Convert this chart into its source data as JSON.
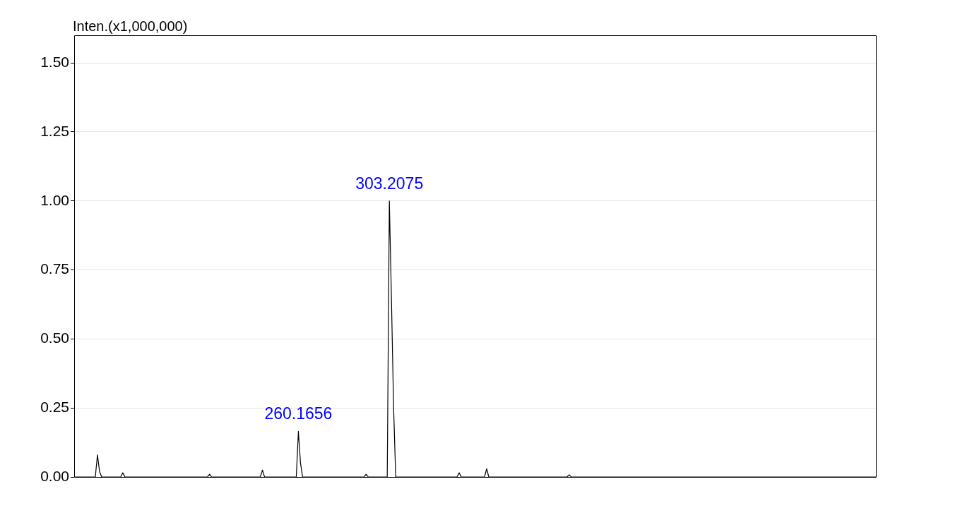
{
  "chart_data": {
    "type": "line",
    "ylabel": "Inten.(x1,000,000)",
    "categories": [
      null,
      null,
      null,
      null,
      null,
      null,
      null,
      null,
      null,
      null,
      null,
      null,
      null,
      null,
      null,
      null,
      null,
      null,
      null,
      null,
      null,
      null,
      null,
      null,
      null,
      null,
      null,
      null,
      null,
      null,
      null,
      null,
      null,
      null,
      null,
      null,
      null,
      null,
      null,
      null,
      null,
      null,
      null,
      null,
      null,
      null,
      null,
      null,
      null,
      null,
      null,
      null,
      null,
      null,
      null,
      null,
      null,
      null,
      null,
      null,
      null,
      null,
      null,
      null,
      null,
      null,
      null,
      null,
      null,
      null,
      null,
      null,
      null,
      null,
      null,
      null,
      null,
      null,
      null,
      null,
      null,
      null,
      null,
      null,
      null,
      null,
      null,
      null,
      null,
      null,
      null,
      null,
      null,
      null,
      null,
      null,
      null,
      null,
      null,
      null,
      null,
      null,
      null,
      null,
      null,
      null,
      null,
      null,
      null,
      null,
      null,
      null,
      null,
      null,
      null,
      null,
      null,
      null,
      null,
      null,
      null,
      null,
      null,
      null,
      null,
      null,
      null,
      null,
      null,
      null,
      null,
      null,
      null,
      null,
      null,
      null,
      null,
      null,
      null,
      null,
      null,
      null,
      null,
      null,
      null,
      null,
      null,
      null,
      null,
      null,
      null,
      null,
      null,
      null,
      null,
      null,
      null,
      null,
      null,
      null,
      null,
      null,
      null,
      null,
      null,
      null,
      null,
      null,
      null,
      null,
      null,
      null,
      null,
      null,
      null,
      null,
      null,
      null,
      null,
      null,
      null,
      null,
      null,
      null,
      null,
      null,
      null,
      null,
      null,
      null,
      null,
      null,
      null,
      null,
      null,
      null,
      null,
      null,
      null,
      null,
      null,
      null,
      null,
      null,
      null,
      null,
      null,
      null,
      null,
      null,
      null,
      null,
      null,
      null,
      null,
      null,
      null,
      null,
      null,
      null,
      null,
      null,
      null,
      null,
      null,
      null,
      null,
      null,
      null,
      null,
      null,
      null,
      null,
      null,
      null,
      null,
      null,
      null,
      null,
      null,
      null,
      null,
      null,
      null,
      null,
      null,
      null,
      null,
      null,
      null,
      null,
      null,
      null,
      null,
      null,
      null,
      null,
      null,
      null,
      null,
      null,
      null,
      null,
      null,
      null,
      null,
      null,
      null,
      null,
      null,
      null,
      null,
      null,
      null,
      null,
      null,
      null,
      null,
      null,
      null,
      null,
      null,
      null,
      null,
      null,
      null,
      null,
      null,
      null,
      null,
      null,
      null,
      null,
      null,
      null,
      null,
      null,
      null,
      null,
      null,
      null,
      null,
      null,
      null,
      null,
      null,
      null,
      null,
      null,
      null,
      null,
      null,
      null,
      null,
      null,
      null,
      null,
      null,
      null,
      null,
      null,
      null,
      null,
      null,
      null,
      null,
      null,
      null,
      null,
      null,
      null,
      null,
      null,
      null,
      null,
      null,
      null,
      null,
      null,
      null,
      null,
      null,
      null,
      null,
      null,
      null,
      null,
      null,
      null,
      null,
      null,
      null,
      null,
      null,
      null,
      null,
      null,
      null,
      null,
      null,
      null,
      null,
      null,
      null,
      null,
      null,
      null,
      null,
      null,
      null,
      null,
      null,
      null,
      null,
      null,
      null,
      null,
      null,
      null,
      null
    ],
    "values": [
      0,
      0,
      0,
      0,
      0,
      0,
      0,
      0,
      0,
      0,
      0,
      0.08,
      0.02,
      0,
      0,
      0,
      0,
      0,
      0,
      0,
      0,
      0,
      0,
      0.015,
      0,
      0,
      0,
      0,
      0,
      0,
      0,
      0,
      0,
      0,
      0,
      0,
      0,
      0,
      0,
      0,
      0,
      0,
      0,
      0,
      0,
      0,
      0,
      0,
      0,
      0,
      0,
      0,
      0,
      0,
      0,
      0,
      0,
      0,
      0,
      0,
      0,
      0,
      0,
      0,
      0.01,
      0,
      0,
      0,
      0,
      0,
      0,
      0,
      0,
      0,
      0,
      0,
      0,
      0,
      0,
      0,
      0,
      0,
      0,
      0,
      0,
      0,
      0,
      0,
      0,
      0.025,
      0,
      0,
      0,
      0,
      0,
      0,
      0,
      0,
      0,
      0,
      0,
      0,
      0,
      0,
      0,
      0,
      0.165,
      0.05,
      0,
      0,
      0,
      0,
      0,
      0,
      0,
      0,
      0,
      0,
      0,
      0,
      0,
      0,
      0,
      0,
      0,
      0,
      0,
      0,
      0,
      0,
      0,
      0,
      0,
      0,
      0,
      0,
      0,
      0,
      0.01,
      0,
      0,
      0,
      0,
      0,
      0,
      0,
      0,
      0,
      0,
      1.0,
      0.64,
      0.255,
      0,
      0,
      0,
      0,
      0,
      0,
      0,
      0,
      0,
      0,
      0,
      0,
      0,
      0,
      0,
      0,
      0,
      0,
      0,
      0,
      0,
      0,
      0,
      0,
      0,
      0,
      0,
      0,
      0,
      0,
      0.015,
      0,
      0,
      0,
      0,
      0,
      0,
      0,
      0,
      0,
      0,
      0,
      0,
      0.03,
      0,
      0,
      0,
      0,
      0,
      0,
      0,
      0,
      0,
      0,
      0,
      0,
      0,
      0,
      0,
      0,
      0,
      0,
      0,
      0,
      0,
      0,
      0,
      0,
      0,
      0,
      0,
      0,
      0,
      0,
      0,
      0,
      0,
      0,
      0,
      0,
      0,
      0,
      0.008,
      0,
      0,
      0,
      0,
      0,
      0,
      0,
      0,
      0,
      0,
      0,
      0,
      0,
      0,
      0,
      0,
      0,
      0,
      0,
      0,
      0,
      0,
      0,
      0,
      0,
      0,
      0,
      0,
      0,
      0,
      0,
      0,
      0,
      0,
      0,
      0,
      0,
      0,
      0,
      0,
      0,
      0,
      0,
      0,
      0,
      0,
      0,
      0,
      0,
      0,
      0,
      0,
      0,
      0,
      0,
      0,
      0,
      0,
      0,
      0,
      0,
      0,
      0,
      0,
      0,
      0,
      0,
      0,
      0,
      0,
      0,
      0,
      0,
      0,
      0,
      0,
      0,
      0,
      0,
      0,
      0,
      0,
      0,
      0,
      0,
      0,
      0,
      0,
      0,
      0,
      0,
      0,
      0,
      0,
      0,
      0,
      0,
      0,
      0,
      0,
      0,
      0,
      0,
      0,
      0,
      0,
      0,
      0,
      0,
      0,
      0,
      0,
      0,
      0,
      0,
      0,
      0,
      0,
      0,
      0,
      0,
      0,
      0,
      0,
      0,
      0,
      0,
      0,
      0,
      0,
      0,
      0,
      0,
      0,
      0,
      0,
      0,
      0,
      0,
      0,
      0,
      0,
      0,
      0,
      0
    ],
    "color": "#000000",
    "ylim": [
      0,
      1.6
    ],
    "yticks": [
      {
        "value": 0,
        "label": "0.00"
      },
      {
        "value": 0.25,
        "label": "0.25"
      },
      {
        "value": 0.5,
        "label": "0.50"
      },
      {
        "value": 0.75,
        "label": "0.75"
      },
      {
        "value": 1,
        "label": "1.00"
      },
      {
        "value": 1.25,
        "label": "1.25"
      },
      {
        "value": 1.5,
        "label": "1.50"
      }
    ],
    "tick_labels": "y",
    "grid": "y",
    "annotations": [
      {
        "text": "260.1656",
        "y": 0.165
      },
      {
        "text": "303.2075",
        "y": 1.0
      }
    ]
  }
}
